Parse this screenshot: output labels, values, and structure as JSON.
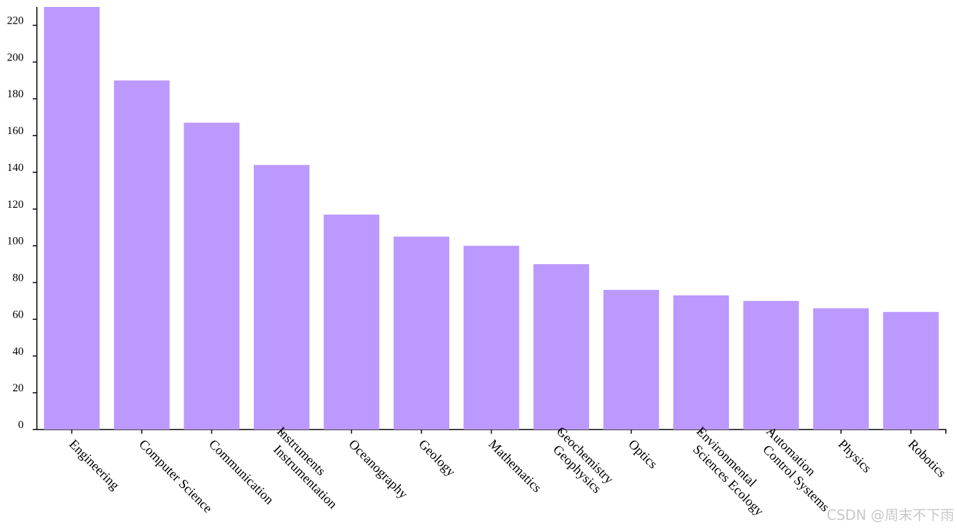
{
  "chart_data": {
    "type": "bar",
    "categories": [
      [
        "Engineering"
      ],
      [
        "Computer Science"
      ],
      [
        "Communication"
      ],
      [
        "Instruments",
        "Instrumentation"
      ],
      [
        "Oceanography"
      ],
      [
        "Geology"
      ],
      [
        "Mathematics"
      ],
      [
        "Geochemistry",
        "Geophysics"
      ],
      [
        "Optics"
      ],
      [
        "Environmental",
        "Sciences Ecology"
      ],
      [
        "Automation",
        "Control Systems"
      ],
      [
        "Physics"
      ],
      [
        "Robotics"
      ]
    ],
    "values": [
      230,
      190,
      167,
      144,
      117,
      105,
      100,
      90,
      76,
      73,
      70,
      66,
      64
    ],
    "color": "#bb99ff",
    "ylim": [
      0,
      230
    ],
    "yticks": [
      0,
      20,
      40,
      60,
      80,
      100,
      120,
      140,
      160,
      180,
      200,
      220
    ],
    "watermark": "CSDN @周末不下雨"
  }
}
